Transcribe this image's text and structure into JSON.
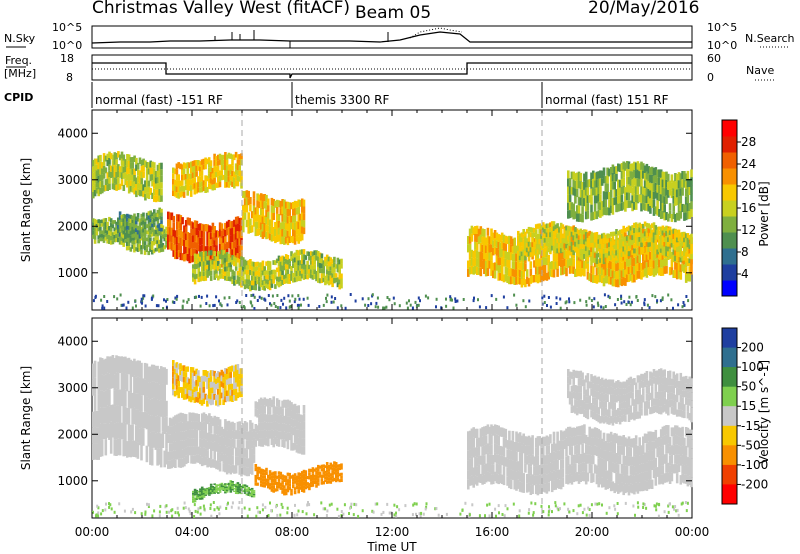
{
  "header": {
    "station": "Christmas Valley West (fitACF)",
    "beam": "Beam 05",
    "date": "20/May/2016"
  },
  "top_panels": {
    "nsky_label": "N.Sky",
    "nsky_ticks": [
      "10^5",
      "10^0"
    ],
    "nsearch_label": "N.Search",
    "freq_label_1": "Freq.",
    "freq_label_2": "[MHz]",
    "freq_ticks": [
      "18",
      "8"
    ],
    "nave_label": "Nave",
    "nave_ticks": [
      "60",
      "0"
    ],
    "cpid_label": "CPID",
    "cpid_segments": [
      {
        "label": "normal (fast) -151 RF",
        "start_hour": 0,
        "end_hour": 8
      },
      {
        "label": "themis 3300 RF",
        "start_hour": 8,
        "end_hour": 18
      },
      {
        "label": "normal (fast) 151 RF",
        "start_hour": 18,
        "end_hour": 24
      }
    ]
  },
  "chart_data": [
    {
      "type": "heatmap",
      "name": "Power",
      "xlabel": "Time UT",
      "ylabel": "Slant Range [km]",
      "x_ticks": [
        "00:00",
        "04:00",
        "08:00",
        "12:00",
        "16:00",
        "20:00",
        "00:00"
      ],
      "xlim_hours": [
        0,
        24
      ],
      "y_ticks": [
        1000,
        2000,
        3000,
        4000
      ],
      "ylim": [
        200,
        4500
      ],
      "colorbar_label": "Power [dB]",
      "colorbar_ticks": [
        4,
        8,
        12,
        16,
        20,
        24,
        28
      ],
      "colorbar_colors": [
        "#0000ff",
        "#1f3f9f",
        "#2f6f8f",
        "#4f8f4f",
        "#7faf3f",
        "#c8d020",
        "#f8c800",
        "#f89000",
        "#f06000",
        "#e02000",
        "#ff0000"
      ],
      "regions": [
        {
          "t0": 0.0,
          "t1": 2.8,
          "r0": 2600,
          "r1": 3500,
          "dB": 16
        },
        {
          "t0": 0.0,
          "t1": 3.0,
          "r0": 1500,
          "r1": 2100,
          "dB": 14
        },
        {
          "t0": 1.0,
          "t1": 2.8,
          "r0": 1800,
          "r1": 2400,
          "dB": 12
        },
        {
          "t0": 3.0,
          "t1": 6.0,
          "r0": 1200,
          "r1": 2200,
          "dB": 26
        },
        {
          "t0": 6.0,
          "t1": 8.5,
          "r0": 1700,
          "r1": 2700,
          "dB": 20
        },
        {
          "t0": 3.2,
          "t1": 6.0,
          "r0": 2700,
          "r1": 3500,
          "dB": 20
        },
        {
          "t0": 4.0,
          "t1": 10.0,
          "r0": 700,
          "r1": 1400,
          "dB": 16
        },
        {
          "t0": 15.0,
          "t1": 24.0,
          "r0": 800,
          "r1": 1900,
          "dB": 20
        },
        {
          "t0": 17.0,
          "t1": 24.0,
          "r0": 1300,
          "r1": 2000,
          "dB": 18
        },
        {
          "t0": 19.0,
          "t1": 24.0,
          "r0": 2200,
          "r1": 3300,
          "dB": 14
        }
      ]
    },
    {
      "type": "heatmap",
      "name": "Velocity",
      "xlabel": "Time UT",
      "ylabel": "Slant Range [km]",
      "x_ticks": [
        "00:00",
        "04:00",
        "08:00",
        "12:00",
        "16:00",
        "20:00",
        "00:00"
      ],
      "xlim_hours": [
        0,
        24
      ],
      "y_ticks": [
        1000,
        2000,
        3000,
        4000
      ],
      "ylim": [
        200,
        4500
      ],
      "colorbar_label": "Velocity [m s^-1]",
      "colorbar_ticks": [
        200,
        100,
        50,
        15,
        -15,
        -50,
        -100,
        -200
      ],
      "colorbar_colors": [
        "#1f3fa0",
        "#2f6f8f",
        "#3f8f3f",
        "#7fd04f",
        "#c8c8c8",
        "#f8c800",
        "#f89000",
        "#f04000",
        "#ff0000"
      ],
      "regions": [
        {
          "t0": 0.0,
          "t1": 3.0,
          "r0": 1400,
          "r1": 3600,
          "v": 0
        },
        {
          "t0": 3.0,
          "t1": 6.5,
          "r0": 1200,
          "r1": 2400,
          "v": 0
        },
        {
          "t0": 6.5,
          "t1": 8.5,
          "r0": 1600,
          "r1": 2700,
          "v": 0
        },
        {
          "t0": 3.2,
          "t1": 6.0,
          "r0": 2700,
          "r1": 3500,
          "v": -20
        },
        {
          "t0": 6.5,
          "t1": 10.0,
          "r0": 800,
          "r1": 1300,
          "v": -60
        },
        {
          "t0": 4.0,
          "t1": 6.5,
          "r0": 600,
          "r1": 900,
          "v": 30
        },
        {
          "t0": 15.0,
          "t1": 24.0,
          "r0": 800,
          "r1": 2100,
          "v": 0
        },
        {
          "t0": 19.0,
          "t1": 24.0,
          "r0": 2300,
          "r1": 3300,
          "v": 0
        }
      ]
    }
  ]
}
